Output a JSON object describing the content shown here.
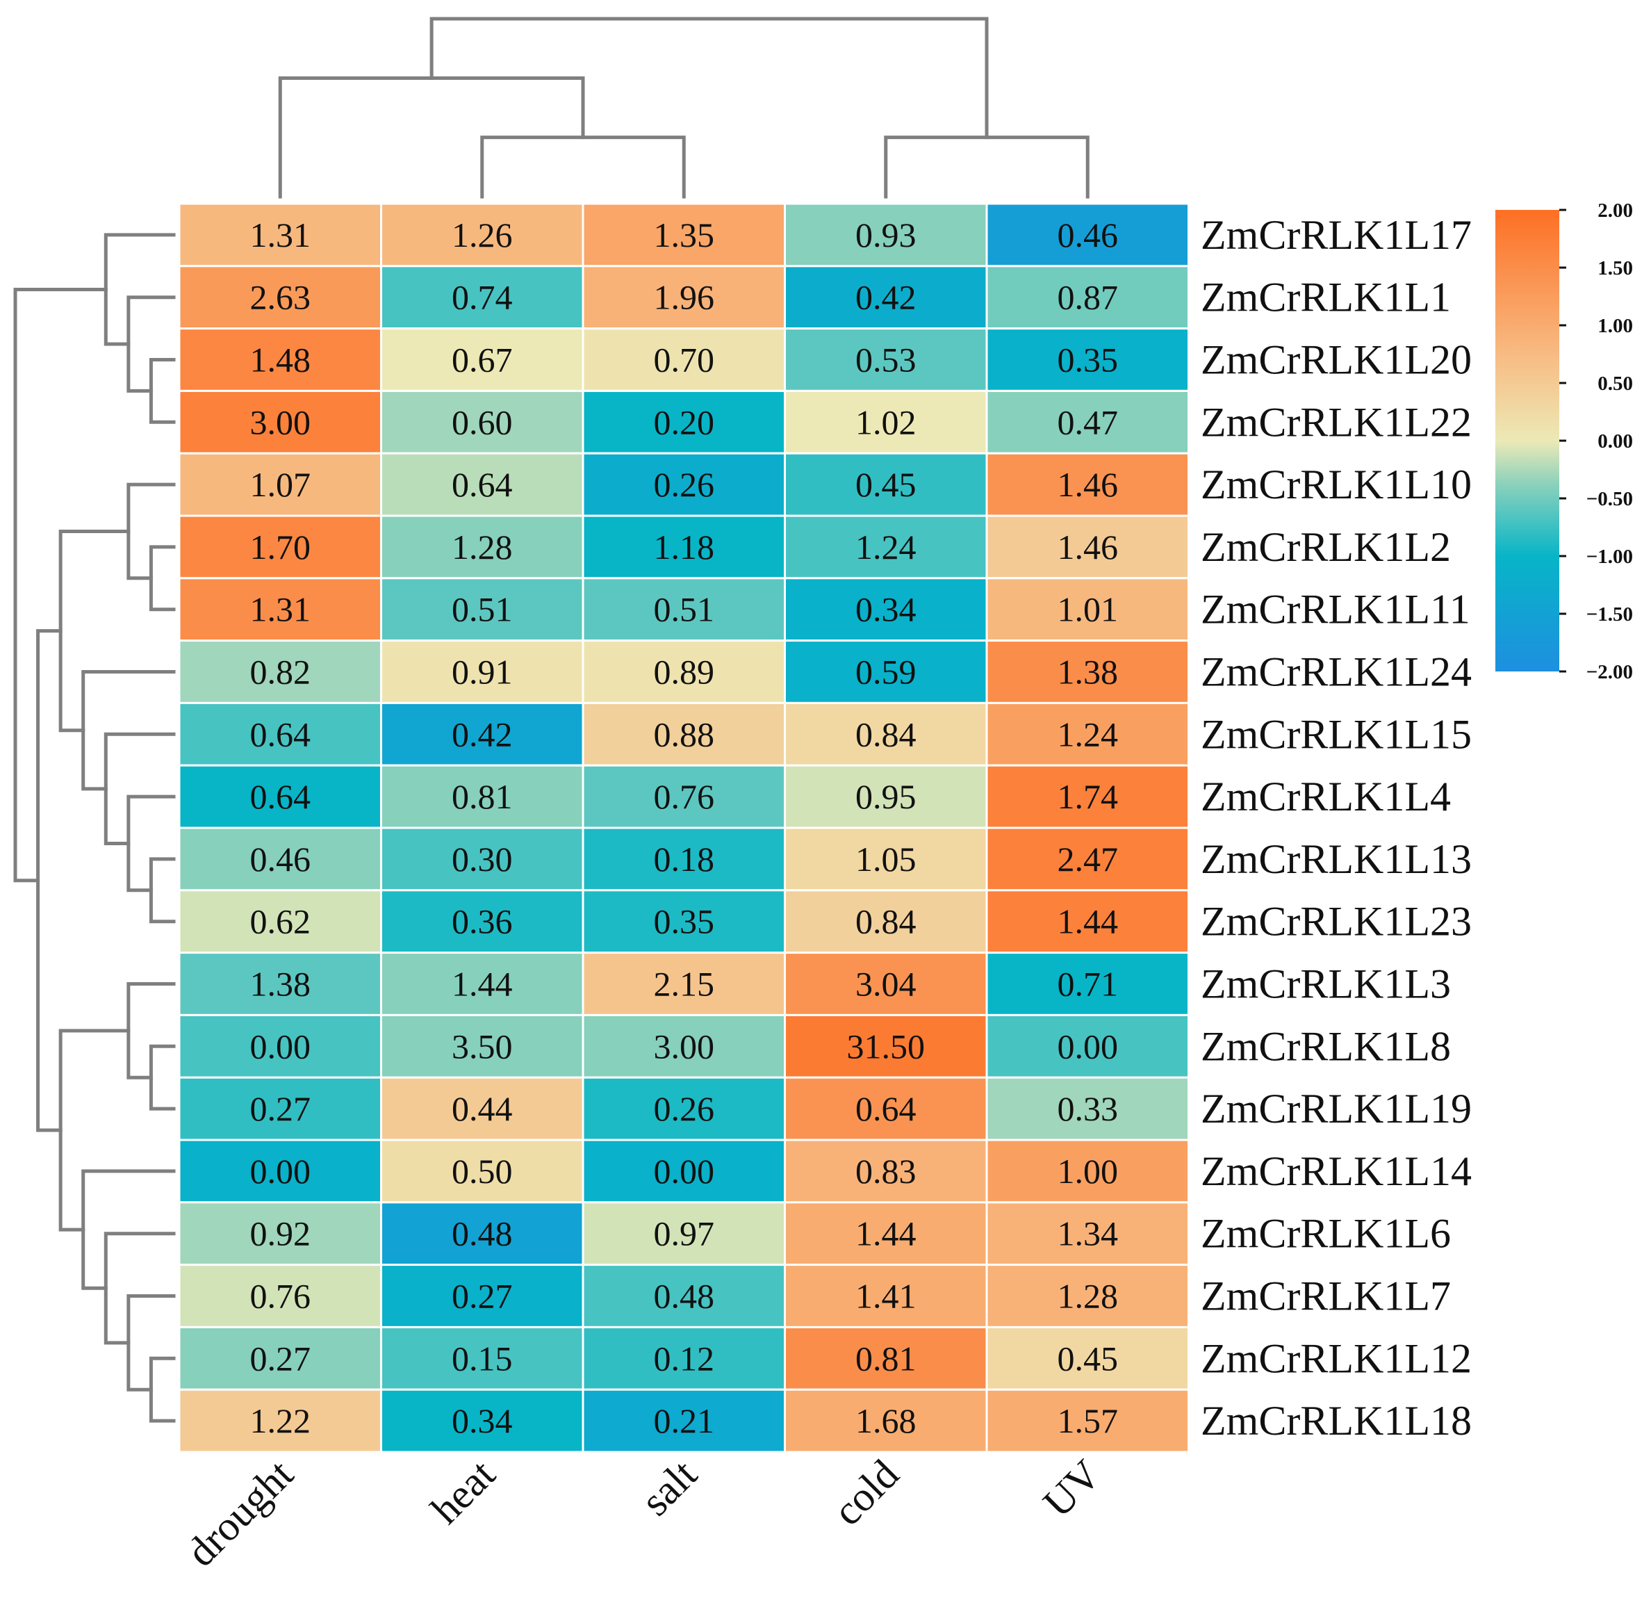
{
  "chart_data": {
    "type": "heatmap",
    "title": "",
    "columns": [
      "drought",
      "heat",
      "salt",
      "cold",
      "UV"
    ],
    "rows": [
      "ZmCrRLK1L17",
      "ZmCrRLK1L1",
      "ZmCrRLK1L20",
      "ZmCrRLK1L22",
      "ZmCrRLK1L10",
      "ZmCrRLK1L2",
      "ZmCrRLK1L11",
      "ZmCrRLK1L24",
      "ZmCrRLK1L15",
      "ZmCrRLK1L4",
      "ZmCrRLK1L13",
      "ZmCrRLK1L23",
      "ZmCrRLK1L3",
      "ZmCrRLK1L8",
      "ZmCrRLK1L19",
      "ZmCrRLK1L14",
      "ZmCrRLK1L6",
      "ZmCrRLK1L7",
      "ZmCrRLK1L12",
      "ZmCrRLK1L18"
    ],
    "value_labels": [
      [
        "1.31",
        "1.26",
        "1.35",
        "0.93",
        "0.46"
      ],
      [
        "2.63",
        "0.74",
        "1.96",
        "0.42",
        "0.87"
      ],
      [
        "1.48",
        "0.67",
        "0.70",
        "0.53",
        "0.35"
      ],
      [
        "3.00",
        "0.60",
        "0.20",
        "1.02",
        "0.47"
      ],
      [
        "1.07",
        "0.64",
        "0.26",
        "0.45",
        "1.46"
      ],
      [
        "1.70",
        "1.28",
        "1.18",
        "1.24",
        "1.46"
      ],
      [
        "1.31",
        "0.51",
        "0.51",
        "0.34",
        "1.01"
      ],
      [
        "0.82",
        "0.91",
        "0.89",
        "0.59",
        "1.38"
      ],
      [
        "0.64",
        "0.42",
        "0.88",
        "0.84",
        "1.24"
      ],
      [
        "0.64",
        "0.81",
        "0.76",
        "0.95",
        "1.74"
      ],
      [
        "0.46",
        "0.30",
        "0.18",
        "1.05",
        "2.47"
      ],
      [
        "0.62",
        "0.36",
        "0.35",
        "0.84",
        "1.44"
      ],
      [
        "1.38",
        "1.44",
        "2.15",
        "3.04",
        "0.71"
      ],
      [
        "0.00",
        "3.50",
        "3.00",
        "31.50",
        "0.00"
      ],
      [
        "0.27",
        "0.44",
        "0.26",
        "0.64",
        "0.33"
      ],
      [
        "0.00",
        "0.50",
        "0.00",
        "0.83",
        "1.00"
      ],
      [
        "0.92",
        "0.48",
        "0.97",
        "1.44",
        "1.34"
      ],
      [
        "0.76",
        "0.27",
        "0.48",
        "1.41",
        "1.28"
      ],
      [
        "0.27",
        "0.15",
        "0.12",
        "0.81",
        "0.45"
      ],
      [
        "1.22",
        "0.34",
        "0.21",
        "1.68",
        "1.57"
      ]
    ],
    "scaled_values": [
      [
        0.8,
        0.8,
        1.1,
        -0.4,
        -1.6
      ],
      [
        1.3,
        -0.7,
        0.9,
        -1.2,
        -0.5
      ],
      [
        1.6,
        0.0,
        0.1,
        -0.6,
        -1.1
      ],
      [
        1.7,
        -0.3,
        -1.0,
        0.0,
        -0.4
      ],
      [
        0.8,
        -0.2,
        -1.2,
        -0.8,
        1.4
      ],
      [
        1.6,
        -0.4,
        -1.0,
        -0.7,
        0.5
      ],
      [
        1.5,
        -0.6,
        -0.6,
        -1.1,
        0.8
      ],
      [
        -0.3,
        0.1,
        0.1,
        -1.1,
        1.5
      ],
      [
        -0.7,
        -1.4,
        0.4,
        0.3,
        1.2
      ],
      [
        -1.0,
        -0.4,
        -0.6,
        -0.1,
        1.7
      ],
      [
        -0.4,
        -0.7,
        -0.9,
        0.3,
        1.7
      ],
      [
        -0.1,
        -0.9,
        -0.9,
        0.4,
        1.7
      ],
      [
        -0.6,
        -0.4,
        0.6,
        1.4,
        -1.0
      ],
      [
        -0.7,
        -0.4,
        -0.4,
        1.8,
        -0.7
      ],
      [
        -0.8,
        0.5,
        -0.9,
        1.4,
        -0.3
      ],
      [
        -1.1,
        0.2,
        -1.1,
        0.9,
        1.2
      ],
      [
        -0.3,
        -1.5,
        -0.1,
        1.0,
        0.9
      ],
      [
        -0.1,
        -1.1,
        -0.7,
        1.0,
        0.9
      ],
      [
        -0.4,
        -0.7,
        -0.8,
        1.5,
        0.3
      ],
      [
        0.5,
        -1.0,
        -1.3,
        1.0,
        1.0
      ]
    ],
    "colorbar": {
      "min": -2.0,
      "max": 2.0,
      "ticks": [
        "2.00",
        "1.50",
        "1.00",
        "0.50",
        "0.00",
        "−0.50",
        "−1.00",
        "−1.50",
        "−2.00"
      ],
      "tick_values": [
        2.0,
        1.5,
        1.0,
        0.5,
        0.0,
        -0.5,
        -1.0,
        -1.5,
        -2.0
      ],
      "colors": {
        "low": "#1e8fe0",
        "low_mid": "#07b5c7",
        "mid_low": "#86d0bc",
        "mid": "#ece9b6",
        "mid_high": "#f7be86",
        "high": "#fd6f24"
      }
    },
    "column_dendrogram": {
      "merges": [
        [
          "heat",
          "salt"
        ],
        [
          "drought",
          "heat+salt"
        ],
        [
          "cold",
          "UV"
        ],
        [
          "drought+heat+salt",
          "cold+UV"
        ]
      ]
    },
    "row_dendrogram": {
      "merges": [
        [
          "ZmCrRLK1L20",
          "ZmCrRLK1L22"
        ],
        [
          "ZmCrRLK1L1",
          "ZmCrRLK1L20+ZmCrRLK1L22"
        ],
        [
          "ZmCrRLK1L17",
          "ZmCrRLK1L1+…"
        ],
        [
          "ZmCrRLK1L2",
          "ZmCrRLK1L11"
        ],
        [
          "ZmCrRLK1L10",
          "ZmCrRLK1L2+ZmCrRLK1L11"
        ],
        [
          "ZmCrRLK1L13",
          "ZmCrRLK1L23"
        ],
        [
          "ZmCrRLK1L4",
          "ZmCrRLK1L13+ZmCrRLK1L23"
        ],
        [
          "ZmCrRLK1L15",
          "ZmCrRLK1L4+…"
        ],
        [
          "ZmCrRLK1L24",
          "ZmCrRLK1L15+…"
        ],
        [
          "ZmCrRLK1L10+…",
          "ZmCrRLK1L24+…"
        ],
        [
          "ZmCrRLK1L8",
          "ZmCrRLK1L19"
        ],
        [
          "ZmCrRLK1L3",
          "ZmCrRLK1L8+ZmCrRLK1L19"
        ],
        [
          "ZmCrRLK1L12",
          "ZmCrRLK1L18"
        ],
        [
          "ZmCrRLK1L7",
          "ZmCrRLK1L12+ZmCrRLK1L18"
        ],
        [
          "ZmCrRLK1L6",
          "ZmCrRLK1L7+…"
        ],
        [
          "ZmCrRLK1L14",
          "ZmCrRLK1L6+…"
        ],
        [
          "ZmCrRLK1L3+…",
          "ZmCrRLK1L14+…"
        ],
        [
          "ZmCrRLK1L10+…",
          "ZmCrRLK1L3+…"
        ],
        [
          "ZmCrRLK1L17+…",
          "ZmCrRLK1L10+…"
        ]
      ]
    }
  }
}
